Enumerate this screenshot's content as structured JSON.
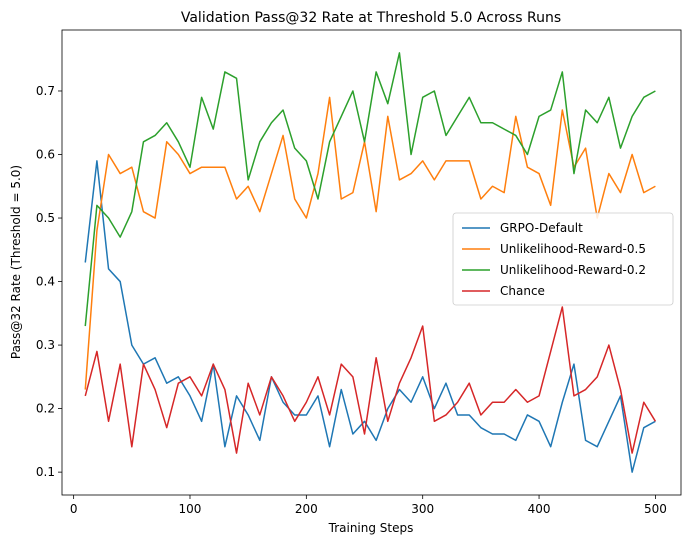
{
  "chart_data": {
    "type": "line",
    "title": "Validation Pass@32 Rate at Threshold 5.0 Across Runs",
    "xlabel": "Training Steps",
    "ylabel": "Pass@32 Rate (Threshold = 5.0)",
    "xlim": [
      -10,
      522
    ],
    "ylim": [
      0.064,
      0.796
    ],
    "xticks": [
      0,
      100,
      200,
      300,
      400,
      500
    ],
    "xtick_labels": [
      "0",
      "100",
      "200",
      "300",
      "400",
      "500"
    ],
    "yticks": [
      0.1,
      0.2,
      0.3,
      0.4,
      0.5,
      0.6,
      0.7
    ],
    "ytick_labels": [
      "0.1",
      "0.2",
      "0.3",
      "0.4",
      "0.5",
      "0.6",
      "0.7"
    ],
    "legend_position": "center-right",
    "x": [
      10,
      20,
      30,
      40,
      50,
      60,
      70,
      80,
      90,
      100,
      110,
      120,
      130,
      140,
      150,
      160,
      170,
      180,
      190,
      200,
      210,
      220,
      230,
      240,
      250,
      260,
      270,
      280,
      290,
      300,
      310,
      320,
      330,
      340,
      350,
      360,
      370,
      380,
      390,
      400,
      410,
      420,
      430,
      440,
      450,
      460,
      470,
      480,
      490,
      500
    ],
    "series": [
      {
        "name": "GRPO-Default",
        "color": "#1f77b4",
        "values": [
          0.43,
          0.59,
          0.42,
          0.4,
          0.3,
          0.27,
          0.28,
          0.24,
          0.25,
          0.22,
          0.18,
          0.27,
          0.14,
          0.22,
          0.19,
          0.15,
          0.25,
          0.21,
          0.19,
          0.19,
          0.22,
          0.14,
          0.23,
          0.16,
          0.18,
          0.15,
          0.2,
          0.23,
          0.21,
          0.25,
          0.2,
          0.24,
          0.19,
          0.19,
          0.17,
          0.16,
          0.16,
          0.15,
          0.19,
          0.18,
          0.14,
          0.21,
          0.27,
          0.15,
          0.14,
          0.18,
          0.22,
          0.1,
          0.17,
          0.18
        ]
      },
      {
        "name": "Unlikelihood-Reward-0.5",
        "color": "#ff7f0e",
        "values": [
          0.23,
          0.48,
          0.6,
          0.57,
          0.58,
          0.51,
          0.5,
          0.62,
          0.6,
          0.57,
          0.58,
          0.58,
          0.58,
          0.53,
          0.55,
          0.51,
          0.57,
          0.63,
          0.53,
          0.5,
          0.57,
          0.69,
          0.53,
          0.54,
          0.62,
          0.51,
          0.66,
          0.56,
          0.57,
          0.59,
          0.56,
          0.59,
          0.59,
          0.59,
          0.53,
          0.55,
          0.54,
          0.66,
          0.58,
          0.57,
          0.52,
          0.67,
          0.58,
          0.61,
          0.5,
          0.57,
          0.54,
          0.6,
          0.54,
          0.55
        ]
      },
      {
        "name": "Unlikelihood-Reward-0.2",
        "color": "#2ca02c",
        "values": [
          0.33,
          0.52,
          0.5,
          0.47,
          0.51,
          0.62,
          0.63,
          0.65,
          0.62,
          0.58,
          0.69,
          0.64,
          0.73,
          0.72,
          0.56,
          0.62,
          0.65,
          0.67,
          0.61,
          0.59,
          0.53,
          0.62,
          0.66,
          0.7,
          0.62,
          0.73,
          0.68,
          0.76,
          0.6,
          0.69,
          0.7,
          0.63,
          0.66,
          0.69,
          0.65,
          0.65,
          0.64,
          0.63,
          0.6,
          0.66,
          0.67,
          0.73,
          0.57,
          0.67,
          0.65,
          0.69,
          0.61,
          0.66,
          0.69,
          0.7
        ]
      },
      {
        "name": "Chance",
        "color": "#d62728",
        "values": [
          0.22,
          0.29,
          0.18,
          0.27,
          0.14,
          0.27,
          0.23,
          0.17,
          0.24,
          0.25,
          0.22,
          0.27,
          0.23,
          0.13,
          0.24,
          0.19,
          0.25,
          0.22,
          0.18,
          0.21,
          0.25,
          0.19,
          0.27,
          0.25,
          0.16,
          0.28,
          0.18,
          0.24,
          0.28,
          0.33,
          0.18,
          0.19,
          0.21,
          0.24,
          0.19,
          0.21,
          0.21,
          0.23,
          0.21,
          0.22,
          0.29,
          0.36,
          0.22,
          0.23,
          0.25,
          0.3,
          0.23,
          0.13,
          0.21,
          0.18
        ]
      }
    ]
  }
}
